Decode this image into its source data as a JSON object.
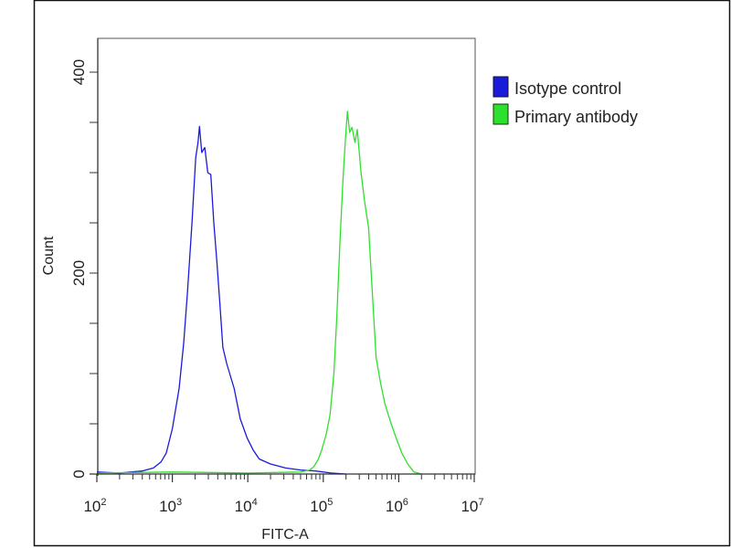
{
  "chart_data": {
    "type": "line",
    "title": "",
    "xlabel": "FITC-A",
    "ylabel": "Count",
    "xscale": "log",
    "xlim_log10": [
      2,
      7
    ],
    "ylim": [
      0,
      430
    ],
    "x_ticks": [
      {
        "base": "10",
        "exp": "2"
      },
      {
        "base": "10",
        "exp": "3"
      },
      {
        "base": "10",
        "exp": "4"
      },
      {
        "base": "10",
        "exp": "5"
      },
      {
        "base": "10",
        "exp": "6"
      },
      {
        "base": "10",
        "exp": "7"
      }
    ],
    "y_ticks": [
      "0",
      "200",
      "400"
    ],
    "y_tick_values": [
      0,
      200,
      400
    ],
    "y_minor_step": 50,
    "legend_position": "right-top",
    "series": [
      {
        "name": "Isotype control",
        "color": "#1a1adb",
        "log10_x": [
          2.0,
          2.3,
          2.6,
          2.75,
          2.85,
          2.92,
          3.0,
          3.09,
          3.15,
          3.2,
          3.26,
          3.31,
          3.34,
          3.36,
          3.39,
          3.43,
          3.47,
          3.51,
          3.55,
          3.59,
          3.63,
          3.67,
          3.72,
          3.78,
          3.82,
          3.9,
          3.99,
          4.07,
          4.15,
          4.3,
          4.5,
          4.7,
          4.9,
          5.1,
          5.3
        ],
        "count": [
          2,
          1,
          3,
          6,
          12,
          21,
          45,
          85,
          130,
          180,
          250,
          315,
          330,
          346,
          320,
          325,
          300,
          298,
          250,
          212,
          170,
          126,
          110,
          95,
          85,
          55,
          36,
          24,
          15,
          10,
          6,
          4,
          3,
          1,
          0
        ]
      },
      {
        "name": "Primary antibody",
        "color": "#2ee02e",
        "log10_x": [
          2.0,
          3.0,
          4.0,
          4.7,
          4.82,
          4.87,
          4.93,
          4.98,
          5.04,
          5.09,
          5.14,
          5.18,
          5.22,
          5.26,
          5.29,
          5.32,
          5.35,
          5.38,
          5.42,
          5.45,
          5.5,
          5.55,
          5.6,
          5.65,
          5.7,
          5.76,
          5.82,
          5.9,
          5.97,
          6.04,
          6.12,
          6.2,
          6.3
        ],
        "count": [
          1,
          2,
          1,
          2,
          4,
          7,
          14,
          24,
          40,
          59,
          100,
          158,
          230,
          292,
          330,
          361,
          340,
          345,
          330,
          343,
          300,
          270,
          245,
          180,
          116,
          90,
          69,
          50,
          35,
          21,
          10,
          2,
          0
        ]
      }
    ]
  }
}
